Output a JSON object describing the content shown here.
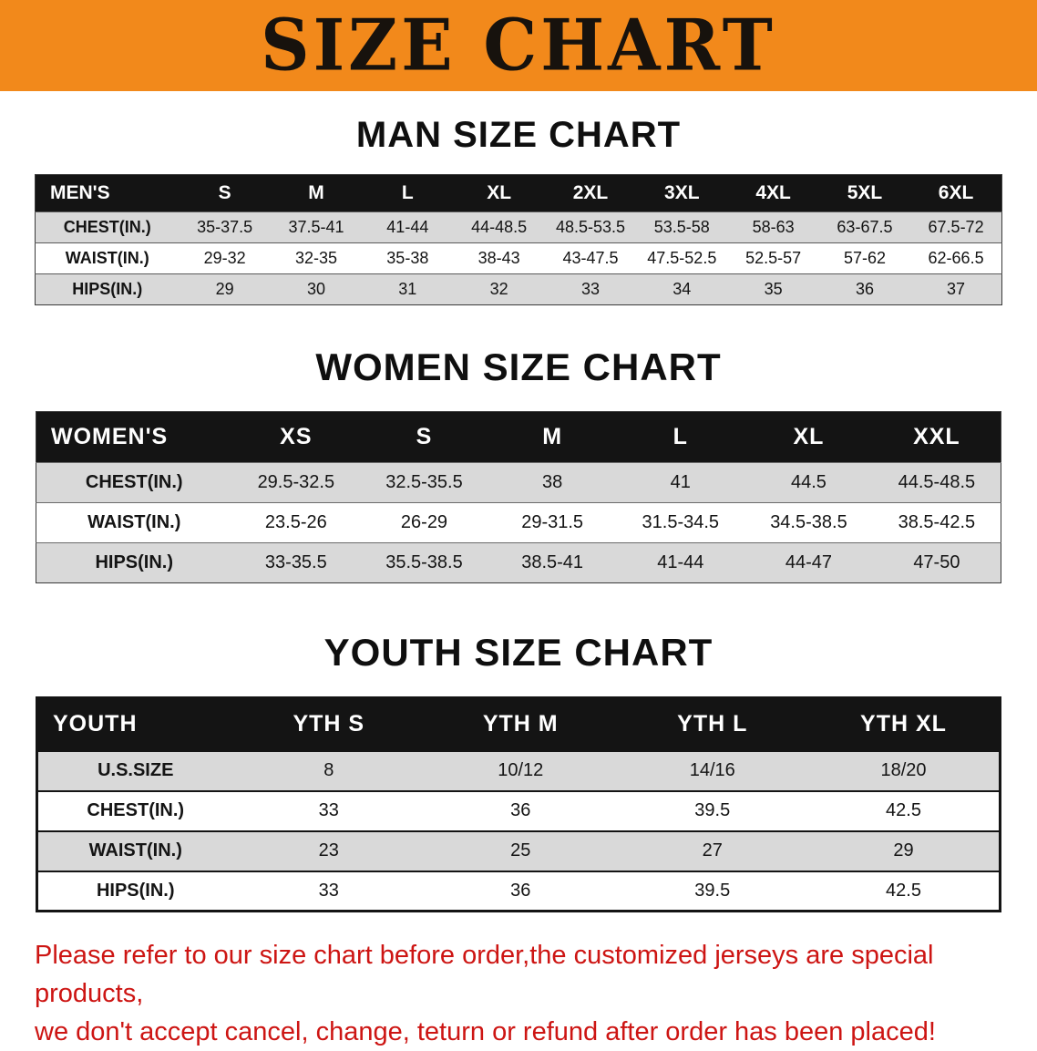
{
  "banner": {
    "title": "SIZE CHART"
  },
  "colors": {
    "banner_orange": "#F2891B",
    "table_header_black": "#141414",
    "row_shaded_gray": "#D9D9D9",
    "note_red": "#CD1513"
  },
  "sections": {
    "men": {
      "title": "MAN SIZE CHART",
      "table": {
        "header": [
          "MEN'S",
          "S",
          "M",
          "L",
          "XL",
          "2XL",
          "3XL",
          "4XL",
          "5XL",
          "6XL"
        ],
        "rows": [
          {
            "label": "CHEST(IN.)",
            "values": [
              "35-37.5",
              "37.5-41",
              "41-44",
              "44-48.5",
              "48.5-53.5",
              "53.5-58",
              "58-63",
              "63-67.5",
              "67.5-72"
            ]
          },
          {
            "label": "WAIST(IN.)",
            "values": [
              "29-32",
              "32-35",
              "35-38",
              "38-43",
              "43-47.5",
              "47.5-52.5",
              "52.5-57",
              "57-62",
              "62-66.5"
            ]
          },
          {
            "label": "HIPS(IN.)",
            "values": [
              "29",
              "30",
              "31",
              "32",
              "33",
              "34",
              "35",
              "36",
              "37"
            ]
          }
        ]
      }
    },
    "women": {
      "title": "WOMEN SIZE CHART",
      "table": {
        "header": [
          "WOMEN'S",
          "XS",
          "S",
          "M",
          "L",
          "XL",
          "XXL"
        ],
        "rows": [
          {
            "label": "CHEST(IN.)",
            "values": [
              "29.5-32.5",
              "32.5-35.5",
              "38",
              "41",
              "44.5",
              "44.5-48.5"
            ]
          },
          {
            "label": "WAIST(IN.)",
            "values": [
              "23.5-26",
              "26-29",
              "29-31.5",
              "31.5-34.5",
              "34.5-38.5",
              "38.5-42.5"
            ]
          },
          {
            "label": "HIPS(IN.)",
            "values": [
              "33-35.5",
              "35.5-38.5",
              "38.5-41",
              "41-44",
              "44-47",
              "47-50"
            ]
          }
        ]
      }
    },
    "youth": {
      "title": "YOUTH SIZE CHART",
      "table": {
        "header": [
          "YOUTH",
          "YTH S",
          "YTH M",
          "YTH L",
          "YTH XL"
        ],
        "rows": [
          {
            "label": "U.S.SIZE",
            "values": [
              "8",
              "10/12",
              "14/16",
              "18/20"
            ]
          },
          {
            "label": "CHEST(IN.)",
            "values": [
              "33",
              "36",
              "39.5",
              "42.5"
            ]
          },
          {
            "label": "WAIST(IN.)",
            "values": [
              "23",
              "25",
              "27",
              "29"
            ]
          },
          {
            "label": "HIPS(IN.)",
            "values": [
              "33",
              "36",
              "39.5",
              "42.5"
            ]
          }
        ]
      }
    }
  },
  "note": {
    "line1": "Please refer to our size chart before order,the customized jerseys are special products,",
    "line2": "we don't accept cancel, change, teturn or refund after order has been placed!"
  }
}
